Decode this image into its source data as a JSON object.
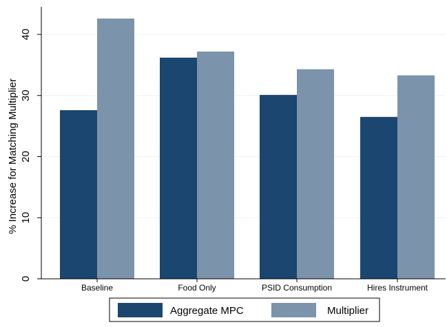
{
  "chart_data": {
    "type": "bar",
    "title": "",
    "xlabel": "",
    "ylabel": "% Increase for Matching Multiplier",
    "categories": [
      "Baseline",
      "Food Only",
      "PSID Consumption",
      "Hires Instrument"
    ],
    "series": [
      {
        "name": "Aggregate MPC",
        "values": [
          27.6,
          36.2,
          30.1,
          26.5
        ],
        "color": "#1a4670"
      },
      {
        "name": "Multiplier",
        "values": [
          42.6,
          37.2,
          34.3,
          33.3
        ],
        "color": "#7b93ab"
      }
    ],
    "ylim": [
      0,
      45
    ],
    "yticks": [
      0,
      10,
      20,
      30,
      40
    ],
    "grid": true,
    "legend_position": "bottom"
  }
}
